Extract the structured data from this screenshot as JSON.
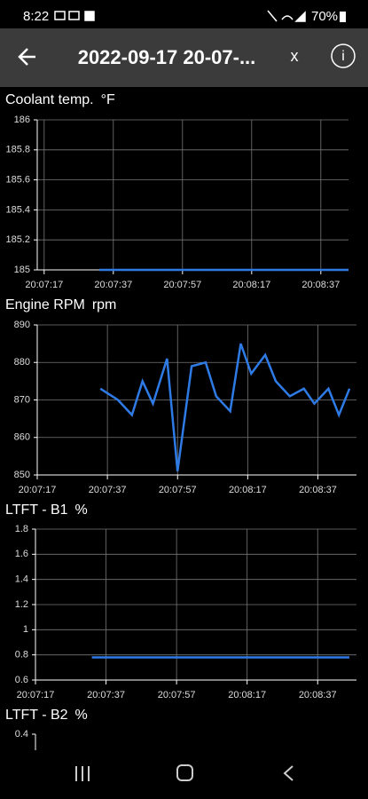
{
  "status_bar": {
    "time": "8:22",
    "battery": "70%"
  },
  "header": {
    "title": "2022-09-17 20-07-...",
    "close": "x",
    "info": "i"
  },
  "chart_data": [
    {
      "type": "line",
      "title": "Coolant temp.",
      "unit": "°F",
      "xlim": [
        "20:07:15",
        "20:08:45"
      ],
      "xticks": [
        "20:07:17",
        "20:07:37",
        "20:07:57",
        "20:08:17",
        "20:08:37"
      ],
      "ylim": [
        185,
        186
      ],
      "yticks": [
        185,
        185.2,
        185.4,
        185.6,
        185.8,
        186
      ],
      "grid": true,
      "series": [
        {
          "color": "#2f7be6",
          "x": [
            "20:07:33",
            "20:08:45"
          ],
          "values": [
            185,
            185
          ]
        }
      ]
    },
    {
      "type": "line",
      "title": "Engine RPM",
      "unit": "rpm",
      "xlim": [
        "20:07:17",
        "20:08:48"
      ],
      "xticks": [
        "20:07:17",
        "20:07:37",
        "20:07:57",
        "20:08:17",
        "20:08:37"
      ],
      "ylim": [
        850,
        890
      ],
      "yticks": [
        850,
        860,
        870,
        880,
        890
      ],
      "grid": true,
      "series": [
        {
          "color": "#2f7be6",
          "x": [
            "20:07:35",
            "20:07:40",
            "20:07:44",
            "20:07:47",
            "20:07:50",
            "20:07:54",
            "20:07:57",
            "20:08:01",
            "20:08:05",
            "20:08:08",
            "20:08:12",
            "20:08:15",
            "20:08:18",
            "20:08:22",
            "20:08:25",
            "20:08:29",
            "20:08:33",
            "20:08:36",
            "20:08:40",
            "20:08:43",
            "20:08:46"
          ],
          "values": [
            873,
            870,
            866,
            875,
            869,
            881,
            851,
            879,
            880,
            871,
            867,
            885,
            877,
            882,
            875,
            871,
            873,
            869,
            873,
            866,
            873
          ]
        }
      ]
    },
    {
      "type": "line",
      "title": "LTFT - B1",
      "unit": "%",
      "xlim": [
        "20:07:17",
        "20:08:48"
      ],
      "xticks": [
        "20:07:17",
        "20:07:37",
        "20:07:57",
        "20:08:17",
        "20:08:37"
      ],
      "ylim": [
        0.6,
        1.8
      ],
      "yticks": [
        0.6,
        0.8,
        1,
        1.2,
        1.4,
        1.6,
        1.8
      ],
      "grid": true,
      "series": [
        {
          "color": "#2f7be6",
          "x": [
            "20:07:33",
            "20:08:46"
          ],
          "values": [
            0.78,
            0.78
          ]
        }
      ]
    },
    {
      "type": "line",
      "title": "LTFT - B2",
      "unit": "%",
      "yticks": [
        0.4
      ]
    }
  ]
}
